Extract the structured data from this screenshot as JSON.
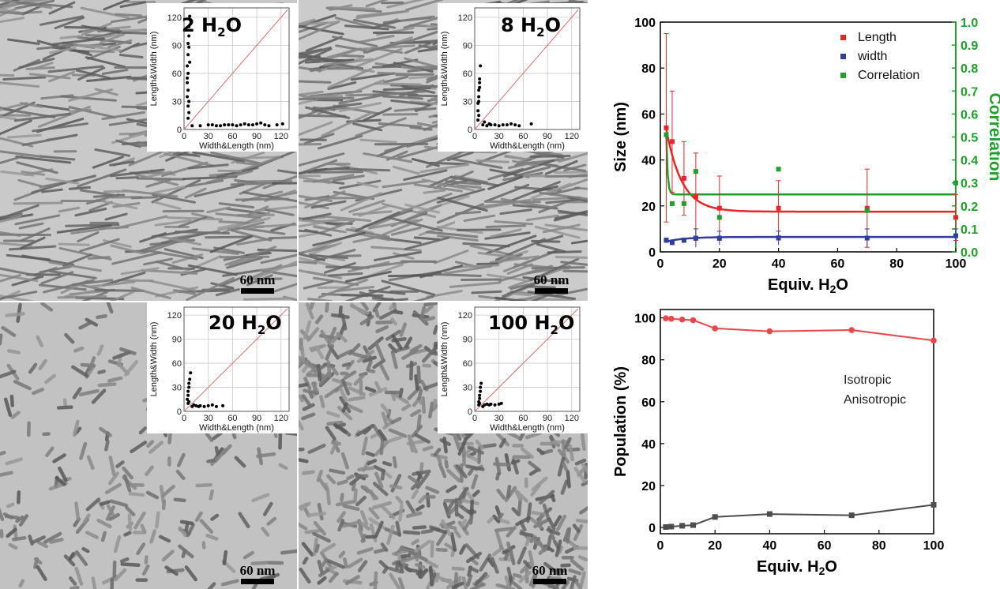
{
  "tem_panels": [
    {
      "title_prefix": "2 H",
      "title_sub": "2",
      "title_suffix": "O",
      "scale_label": "60 nm",
      "inset": {
        "xlabel": "Width&Length (nm)",
        "ylabel": "Length&Width (nm)",
        "ticks": [
          "0",
          "30",
          "60",
          "90",
          "120"
        ],
        "length_points": [
          [
            4,
            55
          ],
          [
            4,
            68
          ],
          [
            5,
            80
          ],
          [
            5,
            92
          ],
          [
            6,
            100
          ],
          [
            6,
            110
          ],
          [
            7,
            121
          ],
          [
            5,
            42
          ],
          [
            4,
            35
          ],
          [
            6,
            30
          ],
          [
            5,
            25
          ],
          [
            7,
            72
          ],
          [
            6,
            88
          ],
          [
            5,
            60
          ],
          [
            4,
            50
          ],
          [
            6,
            18
          ],
          [
            5,
            12
          ]
        ],
        "width_points": [
          [
            10,
            4
          ],
          [
            20,
            4
          ],
          [
            30,
            5
          ],
          [
            40,
            4
          ],
          [
            50,
            5
          ],
          [
            60,
            5
          ],
          [
            70,
            5
          ],
          [
            80,
            5
          ],
          [
            90,
            6
          ],
          [
            95,
            7
          ],
          [
            100,
            5
          ],
          [
            105,
            4
          ],
          [
            115,
            5
          ],
          [
            122,
            6
          ],
          [
            35,
            5
          ],
          [
            45,
            4
          ],
          [
            55,
            5
          ],
          [
            65,
            4
          ],
          [
            75,
            6
          ],
          [
            85,
            5
          ]
        ]
      }
    },
    {
      "title_prefix": "8 H",
      "title_sub": "2",
      "title_suffix": "O",
      "scale_label": "60 nm",
      "inset": {
        "xlabel": "Width&Length (nm)",
        "ylabel": "Length&Width (nm)",
        "ticks": [
          "0",
          "30",
          "60",
          "90",
          "120"
        ],
        "length_points": [
          [
            4,
            20
          ],
          [
            4,
            28
          ],
          [
            5,
            35
          ],
          [
            5,
            42
          ],
          [
            6,
            50
          ],
          [
            6,
            54
          ],
          [
            7,
            68
          ],
          [
            5,
            15
          ],
          [
            4,
            10
          ],
          [
            6,
            45
          ],
          [
            5,
            30
          ]
        ],
        "width_points": [
          [
            10,
            5
          ],
          [
            15,
            4
          ],
          [
            20,
            5
          ],
          [
            25,
            5
          ],
          [
            30,
            4
          ],
          [
            35,
            5
          ],
          [
            40,
            5
          ],
          [
            45,
            6
          ],
          [
            50,
            5
          ],
          [
            55,
            4
          ],
          [
            70,
            6
          ],
          [
            12,
            8
          ],
          [
            18,
            6
          ]
        ]
      }
    },
    {
      "title_prefix": "20 H",
      "title_sub": "2",
      "title_suffix": "O",
      "scale_label": "60 nm",
      "inset": {
        "xlabel": "Width&Length (nm)",
        "ylabel": "Length&Width (nm)",
        "ticks": [
          "0",
          "30",
          "60",
          "90",
          "120"
        ],
        "length_points": [
          [
            4,
            15
          ],
          [
            5,
            20
          ],
          [
            5,
            25
          ],
          [
            6,
            30
          ],
          [
            6,
            35
          ],
          [
            7,
            40
          ],
          [
            8,
            48
          ],
          [
            6,
            12
          ],
          [
            5,
            10
          ]
        ],
        "width_points": [
          [
            10,
            6
          ],
          [
            12,
            8
          ],
          [
            15,
            7
          ],
          [
            18,
            6
          ],
          [
            20,
            7
          ],
          [
            25,
            6
          ],
          [
            30,
            7
          ],
          [
            35,
            8
          ],
          [
            40,
            6
          ],
          [
            48,
            7
          ]
        ]
      }
    },
    {
      "title_prefix": "100 H",
      "title_sub": "2",
      "title_suffix": "O",
      "scale_label": "60 nm",
      "inset": {
        "xlabel": "Width&Length (nm)",
        "ylabel": "Length&Width (nm)",
        "ticks": [
          "0",
          "30",
          "60",
          "90",
          "120"
        ],
        "length_points": [
          [
            5,
            12
          ],
          [
            6,
            16
          ],
          [
            6,
            20
          ],
          [
            7,
            25
          ],
          [
            7,
            30
          ],
          [
            8,
            35
          ],
          [
            6,
            10
          ],
          [
            5,
            8
          ]
        ],
        "width_points": [
          [
            10,
            6
          ],
          [
            12,
            8
          ],
          [
            15,
            9
          ],
          [
            18,
            8
          ],
          [
            20,
            9
          ],
          [
            25,
            8
          ],
          [
            30,
            9
          ],
          [
            33,
            10
          ]
        ]
      }
    }
  ],
  "chart_data": [
    {
      "type": "scatter",
      "xlabel_prefix": "Equiv. H",
      "xlabel_sub": "2",
      "xlabel_suffix": "O",
      "ylabel": "Size (nm)",
      "y2label": "Correlation",
      "xlim": [
        0,
        100
      ],
      "ylim": [
        0,
        100
      ],
      "y2lim": [
        0,
        1.0
      ],
      "xticks": [
        0,
        20,
        40,
        60,
        80,
        100
      ],
      "yticks": [
        0,
        20,
        40,
        60,
        80,
        100
      ],
      "y2ticks": [
        "0.0",
        "0.1",
        "0.2",
        "0.3",
        "0.4",
        "0.5",
        "0.6",
        "0.7",
        "0.8",
        "0.9",
        "1.0"
      ],
      "legend": [
        "Length",
        "width",
        "Correlation"
      ],
      "colors": {
        "length": "#e8262a",
        "width": "#2f3ea0",
        "correlation": "#1fa02a"
      },
      "x": [
        2,
        4,
        8,
        12,
        20,
        40,
        70,
        100
      ],
      "length": [
        54,
        48,
        32,
        24,
        19,
        19,
        19,
        15
      ],
      "length_err": [
        41,
        22,
        16,
        19,
        14,
        12,
        17,
        10
      ],
      "width": [
        5,
        4,
        5,
        6,
        6,
        6,
        6,
        7
      ],
      "width_err": [
        1,
        1,
        1,
        4,
        3,
        3,
        4,
        3
      ],
      "correlation": [
        0.51,
        0.21,
        0.21,
        0.35,
        0.15,
        0.36,
        0.18,
        0.3
      ],
      "fit_length": {
        "a": 36,
        "k": 0.19,
        "c": 17.5
      },
      "fit_width": {
        "a": -2,
        "k": 0.15,
        "c": 6.5
      },
      "fit_correlation": {
        "x0": 2,
        "y0": 0.51,
        "k": 2.2,
        "c": 0.25
      }
    },
    {
      "type": "line",
      "xlabel_prefix": "Equiv. H",
      "xlabel_sub": "2",
      "xlabel_suffix": "O",
      "ylabel": "Population (%)",
      "xlim": [
        0,
        100
      ],
      "ylim": [
        -3,
        104
      ],
      "xticks": [
        0,
        20,
        40,
        60,
        80,
        100
      ],
      "yticks": [
        0,
        20,
        40,
        60,
        80,
        100
      ],
      "annotations": [
        "Isotropic",
        "Anisotropic"
      ],
      "series": [
        {
          "name": "Isotropic",
          "color": "#e8474c",
          "x": [
            2,
            4,
            8,
            12,
            20,
            40,
            70,
            100
          ],
          "values": [
            99.8,
            99.6,
            99.2,
            98.9,
            95,
            93.6,
            94.2,
            89.2
          ]
        },
        {
          "name": "Anisotropic",
          "color": "#4d4d4d",
          "x": [
            2,
            4,
            8,
            12,
            20,
            40,
            70,
            100
          ],
          "values": [
            0.2,
            0.4,
            0.8,
            1.1,
            5,
            6.4,
            5.8,
            10.8
          ]
        }
      ]
    }
  ]
}
